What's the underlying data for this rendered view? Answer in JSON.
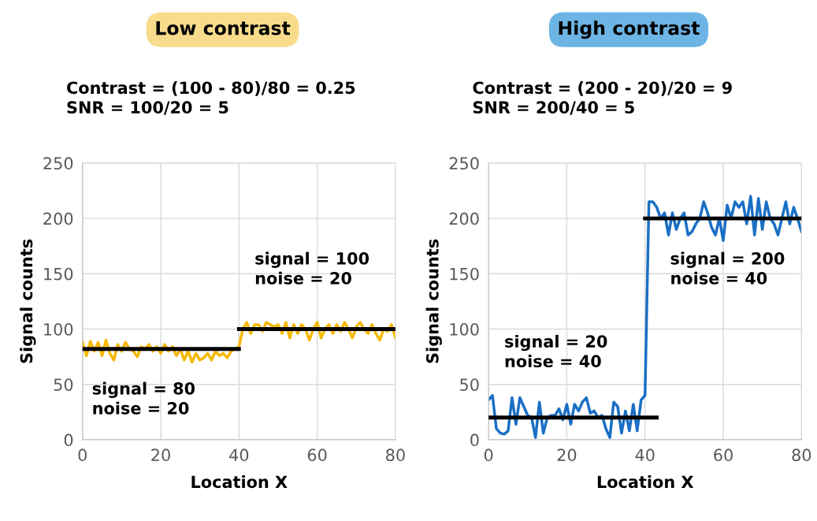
{
  "chart_data": [
    {
      "type": "line",
      "title": "Low contrast",
      "subtitle": "Contrast = (100 - 80)/80 = 0.25\nSNR = 100/20 = 5",
      "xlabel": "Location X",
      "ylabel": "Signal counts",
      "xlim": [
        0,
        80
      ],
      "xticks": [
        0,
        20,
        40,
        60,
        80
      ],
      "ylim": [
        0,
        250
      ],
      "yticks": [
        0,
        50,
        100,
        150,
        200,
        250
      ],
      "grid": true,
      "legend": false,
      "annotations": [
        "signal = 80\nnoise = 20",
        "signal = 100\nnoise = 20"
      ],
      "series": [
        {
          "color": "#f5b800",
          "x": [
            0,
            1,
            2,
            3,
            4,
            5,
            6,
            7,
            8,
            9,
            10,
            11,
            12,
            13,
            14,
            15,
            16,
            17,
            18,
            19,
            20,
            21,
            22,
            23,
            24,
            25,
            26,
            27,
            28,
            29,
            30,
            31,
            32,
            33,
            34,
            35,
            36,
            37,
            38,
            39,
            40,
            41,
            42,
            43,
            44,
            45,
            46,
            47,
            48,
            49,
            50,
            51,
            52,
            53,
            54,
            55,
            56,
            57,
            58,
            59,
            60,
            61,
            62,
            63,
            64,
            65,
            66,
            67,
            68,
            69,
            70,
            71,
            72,
            73,
            74,
            75,
            76,
            77,
            78,
            79,
            80
          ],
          "values": [
            88,
            76,
            89,
            80,
            88,
            76,
            90,
            78,
            72,
            86,
            80,
            88,
            82,
            80,
            75,
            84,
            82,
            86,
            80,
            84,
            78,
            86,
            80,
            84,
            76,
            82,
            72,
            80,
            70,
            78,
            72,
            74,
            78,
            72,
            80,
            76,
            78,
            74,
            80,
            82,
            84,
            100,
            106,
            96,
            104,
            104,
            98,
            106,
            104,
            102,
            104,
            96,
            106,
            92,
            104,
            96,
            104,
            100,
            90,
            100,
            106,
            92,
            100,
            104,
            96,
            104,
            98,
            106,
            100,
            92,
            102,
            106,
            100,
            96,
            104,
            96,
            90,
            100,
            98,
            104,
            92
          ]
        },
        {
          "color": "#000000",
          "x": [
            0,
            40
          ],
          "values": [
            82,
            82
          ]
        },
        {
          "color": "#000000",
          "x": [
            40,
            80
          ],
          "values": [
            100,
            100
          ]
        }
      ]
    },
    {
      "type": "line",
      "title": "High contrast",
      "subtitle": "Contrast = (200 - 20)/20 = 9\nSNR = 200/40 = 5",
      "xlabel": "Location X",
      "ylabel": "Signal counts",
      "xlim": [
        0,
        80
      ],
      "xticks": [
        0,
        20,
        40,
        60,
        80
      ],
      "ylim": [
        0,
        250
      ],
      "yticks": [
        0,
        50,
        100,
        150,
        200,
        250
      ],
      "grid": true,
      "legend": false,
      "annotations": [
        "signal = 20\nnoise = 40",
        "signal = 200\nnoise = 40"
      ],
      "series": [
        {
          "color": "#1a6fc4",
          "x": [
            0,
            1,
            2,
            3,
            4,
            5,
            6,
            7,
            8,
            9,
            10,
            11,
            12,
            13,
            14,
            15,
            16,
            17,
            18,
            19,
            20,
            21,
            22,
            23,
            24,
            25,
            26,
            27,
            28,
            29,
            30,
            31,
            32,
            33,
            34,
            35,
            36,
            37,
            38,
            39,
            40,
            41,
            42,
            43,
            44,
            45,
            46,
            47,
            48,
            49,
            50,
            51,
            52,
            53,
            54,
            55,
            56,
            57,
            58,
            59,
            60,
            61,
            62,
            63,
            64,
            65,
            66,
            67,
            68,
            69,
            70,
            71,
            72,
            73,
            74,
            75,
            76,
            77,
            78,
            79,
            80
          ],
          "values": [
            36,
            40,
            10,
            6,
            5,
            8,
            38,
            14,
            38,
            30,
            22,
            20,
            2,
            34,
            6,
            20,
            22,
            22,
            28,
            18,
            32,
            14,
            32,
            26,
            34,
            38,
            24,
            26,
            20,
            22,
            10,
            2,
            34,
            30,
            6,
            26,
            8,
            32,
            8,
            36,
            40,
            215,
            215,
            210,
            200,
            205,
            185,
            205,
            190,
            200,
            205,
            185,
            188,
            195,
            200,
            215,
            205,
            192,
            185,
            200,
            180,
            212,
            200,
            215,
            210,
            215,
            195,
            220,
            185,
            218,
            190,
            215,
            200,
            195,
            185,
            200,
            215,
            195,
            210,
            200,
            188
          ]
        },
        {
          "color": "#000000",
          "x": [
            0,
            43
          ],
          "values": [
            20,
            20
          ]
        },
        {
          "color": "#000000",
          "x": [
            40,
            80
          ],
          "values": [
            200,
            200
          ]
        }
      ]
    }
  ]
}
